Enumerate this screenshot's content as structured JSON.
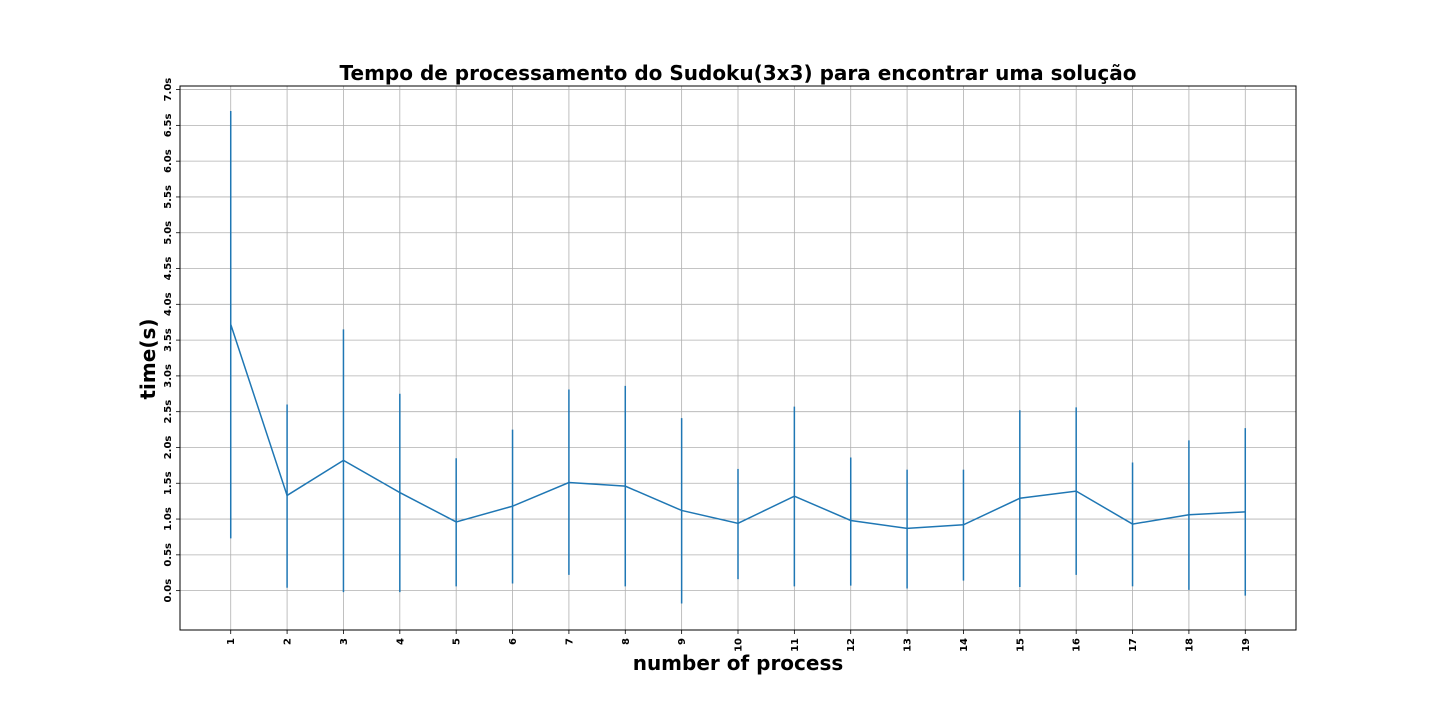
{
  "chart_data": {
    "type": "line",
    "title": "Tempo de processamento do Sudoku(3x3) para encontrar uma solução",
    "xlabel": "number of process",
    "ylabel": "time(s)",
    "x": [
      1,
      2,
      3,
      4,
      5,
      6,
      7,
      8,
      9,
      10,
      11,
      12,
      13,
      14,
      15,
      16,
      17,
      18,
      19
    ],
    "x_tick_labels": [
      "1",
      "2",
      "3",
      "4",
      "5",
      "6",
      "7",
      "8",
      "9",
      "10",
      "11",
      "12",
      "13",
      "14",
      "15",
      "16",
      "17",
      "18",
      "19"
    ],
    "y_ticks": [
      0,
      0.5,
      1.0,
      1.5,
      2.0,
      2.5,
      3.0,
      3.5,
      4.0,
      4.5,
      5.0,
      5.5,
      6.0,
      6.5,
      7.0
    ],
    "y_tick_labels": [
      "0.0s",
      "0.5s",
      "1.0s",
      "1.5s",
      "2.0s",
      "2.5s",
      "3.0s",
      "3.5s",
      "4.0s",
      "4.5s",
      "5.0s",
      "5.5s",
      "6.0s",
      "6.5s",
      "7.0s"
    ],
    "xlim": [
      0.1,
      19.9
    ],
    "ylim": [
      -0.55,
      7.05
    ],
    "grid": true,
    "series": [
      {
        "values": [
          3.72,
          1.33,
          1.82,
          1.37,
          0.96,
          1.18,
          1.51,
          1.46,
          1.12,
          0.94,
          1.32,
          0.98,
          0.87,
          0.92,
          1.29,
          1.39,
          0.93,
          1.06,
          1.1
        ],
        "error_low": [
          0.73,
          0.04,
          -0.02,
          -0.02,
          0.06,
          0.1,
          0.22,
          0.06,
          -0.18,
          0.16,
          0.06,
          0.07,
          0.03,
          0.14,
          0.05,
          0.22,
          0.06,
          0.01,
          -0.07
        ],
        "error_high": [
          6.7,
          2.6,
          3.65,
          2.75,
          1.85,
          2.25,
          2.81,
          2.86,
          2.41,
          1.7,
          2.57,
          1.86,
          1.69,
          1.69,
          2.52,
          2.56,
          1.79,
          2.1,
          2.27
        ],
        "color": "#1f77b4"
      }
    ]
  }
}
